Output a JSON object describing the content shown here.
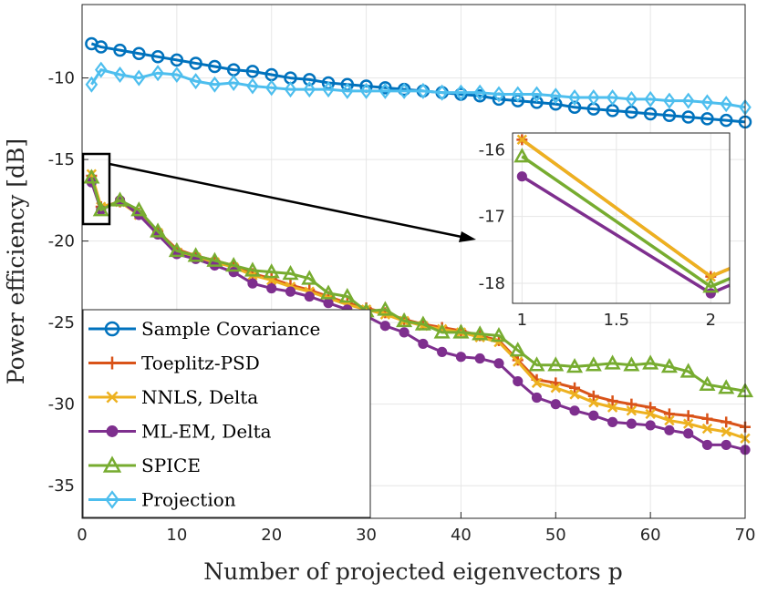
{
  "chart_data": {
    "type": "line",
    "xlabel": "Number of projected eigenvectors p",
    "ylabel": "Power efficiency [dB]",
    "xlim": [
      0,
      70
    ],
    "ylim": [
      -37,
      -5.5
    ],
    "xticks": [
      0,
      10,
      20,
      30,
      40,
      50,
      60,
      70
    ],
    "yticks": [
      -10,
      -15,
      -20,
      -25,
      -30,
      -35
    ],
    "grid": true,
    "legend_position": "bottom-left",
    "series": [
      {
        "name": "Sample Covariance",
        "color": "#0072BD",
        "marker": "circle",
        "x": [
          1,
          2,
          4,
          6,
          8,
          10,
          12,
          14,
          16,
          18,
          20,
          22,
          24,
          26,
          28,
          30,
          32,
          34,
          36,
          38,
          40,
          42,
          44,
          46,
          48,
          50,
          52,
          54,
          56,
          58,
          60,
          62,
          64,
          66,
          68,
          70
        ],
        "y": [
          -7.9,
          -8.1,
          -8.3,
          -8.5,
          -8.7,
          -8.9,
          -9.1,
          -9.3,
          -9.5,
          -9.6,
          -9.8,
          -10.0,
          -10.1,
          -10.3,
          -10.4,
          -10.5,
          -10.6,
          -10.7,
          -10.8,
          -10.9,
          -11.0,
          -11.1,
          -11.3,
          -11.4,
          -11.5,
          -11.6,
          -11.8,
          -11.9,
          -12.0,
          -12.1,
          -12.2,
          -12.3,
          -12.4,
          -12.5,
          -12.6,
          -12.7
        ]
      },
      {
        "name": "Toeplitz-PSD",
        "color": "#D95319",
        "marker": "plus",
        "x": [
          1,
          2,
          4,
          6,
          8,
          10,
          12,
          14,
          16,
          18,
          20,
          22,
          24,
          26,
          28,
          30,
          32,
          34,
          36,
          38,
          40,
          42,
          44,
          46,
          48,
          50,
          52,
          54,
          56,
          58,
          60,
          62,
          64,
          66,
          68,
          70
        ],
        "y": [
          -16.0,
          -17.9,
          -17.6,
          -18.3,
          -19.4,
          -20.5,
          -20.9,
          -21.2,
          -21.5,
          -22.0,
          -22.3,
          -22.7,
          -23.0,
          -23.4,
          -23.8,
          -24.1,
          -24.4,
          -24.8,
          -25.1,
          -25.3,
          -25.5,
          -25.8,
          -26.1,
          -27.3,
          -28.5,
          -28.7,
          -29.0,
          -29.5,
          -29.8,
          -30.0,
          -30.2,
          -30.6,
          -30.7,
          -30.9,
          -31.1,
          -31.4
        ]
      },
      {
        "name": "NNLS, Delta",
        "color": "#EDB120",
        "marker": "x",
        "x": [
          1,
          2,
          4,
          6,
          8,
          10,
          12,
          14,
          16,
          18,
          20,
          22,
          24,
          26,
          28,
          30,
          32,
          34,
          36,
          38,
          40,
          42,
          44,
          46,
          48,
          50,
          52,
          54,
          56,
          58,
          60,
          62,
          64,
          66,
          68,
          70
        ],
        "y": [
          -15.9,
          -17.9,
          -17.6,
          -18.4,
          -19.5,
          -20.7,
          -21.0,
          -21.3,
          -21.6,
          -22.1,
          -22.4,
          -22.8,
          -23.1,
          -23.5,
          -23.9,
          -24.2,
          -24.5,
          -24.9,
          -25.2,
          -25.4,
          -25.6,
          -25.9,
          -26.2,
          -27.4,
          -28.7,
          -29.0,
          -29.4,
          -29.9,
          -30.2,
          -30.4,
          -30.6,
          -31.0,
          -31.2,
          -31.5,
          -31.7,
          -32.1
        ]
      },
      {
        "name": "ML-EM, Delta",
        "color": "#7E2F8E",
        "marker": "dot",
        "x": [
          1,
          2,
          4,
          6,
          8,
          10,
          12,
          14,
          16,
          18,
          20,
          22,
          24,
          26,
          28,
          30,
          32,
          34,
          36,
          38,
          40,
          42,
          44,
          46,
          48,
          50,
          52,
          54,
          56,
          58,
          60,
          62,
          64,
          66,
          68,
          70
        ],
        "y": [
          -16.4,
          -18.1,
          -17.5,
          -18.4,
          -19.6,
          -20.8,
          -21.1,
          -21.5,
          -21.9,
          -22.6,
          -22.9,
          -23.1,
          -23.4,
          -23.8,
          -24.2,
          -24.6,
          -25.2,
          -25.6,
          -26.3,
          -26.8,
          -27.1,
          -27.2,
          -27.5,
          -28.6,
          -29.6,
          -30.0,
          -30.4,
          -30.7,
          -31.1,
          -31.2,
          -31.3,
          -31.6,
          -31.8,
          -32.5,
          -32.5,
          -32.8
        ]
      },
      {
        "name": "SPICE",
        "color": "#77AC30",
        "marker": "triangle",
        "x": [
          1,
          2,
          4,
          6,
          8,
          10,
          12,
          14,
          16,
          18,
          20,
          22,
          24,
          26,
          28,
          30,
          32,
          34,
          36,
          38,
          40,
          42,
          44,
          46,
          48,
          50,
          52,
          54,
          56,
          58,
          60,
          62,
          64,
          66,
          68,
          70
        ],
        "y": [
          -16.1,
          -18.1,
          -17.5,
          -18.1,
          -19.4,
          -20.6,
          -20.9,
          -21.2,
          -21.5,
          -21.8,
          -21.9,
          -22.0,
          -22.3,
          -23.2,
          -23.4,
          -24.3,
          -24.2,
          -24.9,
          -25.1,
          -25.6,
          -25.6,
          -25.7,
          -25.8,
          -26.7,
          -27.6,
          -27.6,
          -27.7,
          -27.6,
          -27.5,
          -27.6,
          -27.5,
          -27.7,
          -28.0,
          -28.8,
          -29.0,
          -29.2
        ]
      },
      {
        "name": "Projection",
        "color": "#4DBEEE",
        "marker": "diamond",
        "x": [
          1,
          2,
          4,
          6,
          8,
          10,
          12,
          14,
          16,
          18,
          20,
          22,
          24,
          26,
          28,
          30,
          32,
          34,
          36,
          38,
          40,
          42,
          44,
          46,
          48,
          50,
          52,
          54,
          56,
          58,
          60,
          62,
          64,
          66,
          68,
          70
        ],
        "y": [
          -10.4,
          -9.5,
          -9.8,
          -10.0,
          -9.7,
          -9.8,
          -10.2,
          -10.4,
          -10.3,
          -10.5,
          -10.6,
          -10.7,
          -10.7,
          -10.7,
          -10.8,
          -10.8,
          -10.8,
          -10.8,
          -10.8,
          -10.9,
          -10.9,
          -10.9,
          -11.0,
          -11.0,
          -11.0,
          -11.1,
          -11.2,
          -11.2,
          -11.2,
          -11.3,
          -11.3,
          -11.4,
          -11.4,
          -11.5,
          -11.6,
          -11.8
        ]
      }
    ],
    "inset": {
      "xlim": [
        0.95,
        2.1
      ],
      "ylim": [
        -18.3,
        -15.75
      ],
      "xticks": [
        1,
        1.5,
        2
      ],
      "xtick_labels": [
        "1",
        "1.5",
        "2"
      ],
      "yticks": [
        -16,
        -17,
        -18
      ],
      "series": [
        {
          "name": "Toeplitz-PSD",
          "x": [
            1,
            2,
            2.1
          ],
          "y": [
            -15.85,
            -17.9,
            -17.78
          ]
        },
        {
          "name": "NNLS, Delta",
          "x": [
            1,
            2,
            2.1
          ],
          "y": [
            -15.85,
            -17.9,
            -17.78
          ]
        },
        {
          "name": "ML-EM, Delta",
          "x": [
            1,
            2,
            2.1
          ],
          "y": [
            -16.4,
            -18.15,
            -18.03
          ]
        },
        {
          "name": "SPICE",
          "x": [
            1,
            2,
            2.1
          ],
          "y": [
            -16.1,
            -18.05,
            -17.93
          ]
        }
      ]
    }
  }
}
